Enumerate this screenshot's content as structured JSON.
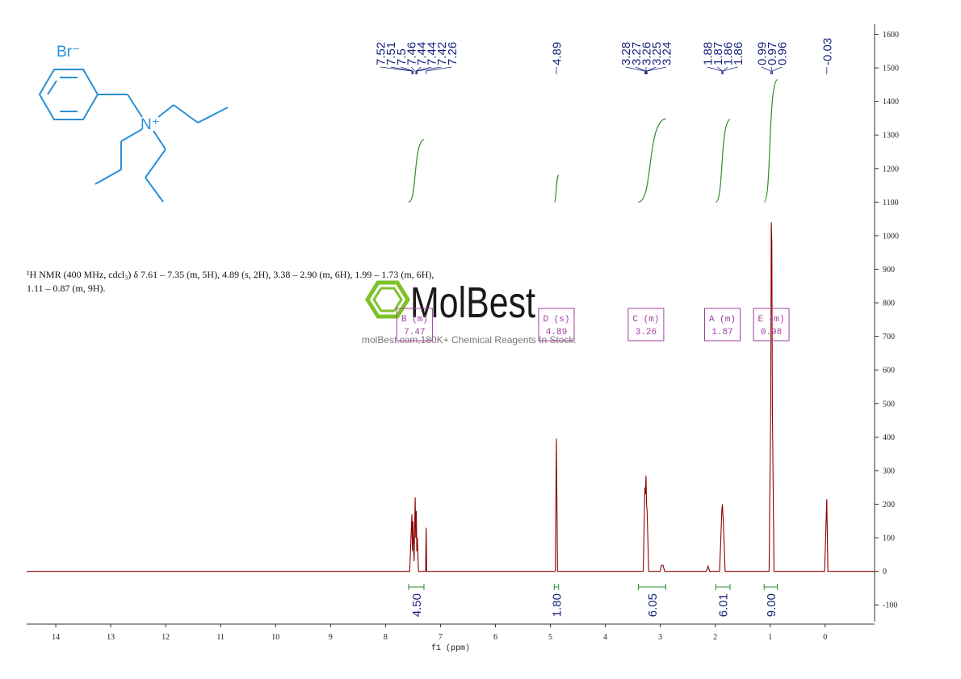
{
  "chart_data": {
    "type": "line",
    "xlabel": "f1 (ppm)",
    "xlim": [
      14.53,
      -0.9
    ],
    "xticks": [
      0,
      1,
      2,
      3,
      4,
      5,
      6,
      7,
      8,
      9,
      10,
      11,
      12,
      13,
      14
    ],
    "ylim": [
      -150,
      1630
    ],
    "yticks": [
      -100,
      0,
      100,
      200,
      300,
      400,
      500,
      600,
      700,
      800,
      900,
      1000,
      1100,
      1200,
      1300,
      1400,
      1500,
      1600
    ],
    "series": [
      {
        "color": "#8b0000",
        "x": [
          14.53,
          7.56,
          7.52,
          7.51,
          7.5,
          7.48,
          7.46,
          7.45,
          7.44,
          7.43,
          7.42,
          7.4,
          7.27,
          7.26,
          7.25,
          4.91,
          4.89,
          4.87,
          3.31,
          3.28,
          3.27,
          3.26,
          3.25,
          3.24,
          3.21,
          3.0,
          2.98,
          2.95,
          2.92,
          2.16,
          2.13,
          2.1,
          1.92,
          1.88,
          1.87,
          1.86,
          1.85,
          1.82,
          1.02,
          0.99,
          0.98,
          0.97,
          0.96,
          0.93,
          0.01,
          -0.03,
          -0.05,
          -0.9
        ],
        "values": [
          0,
          0,
          170,
          60,
          150,
          30,
          220,
          100,
          180,
          60,
          100,
          0,
          0,
          130,
          0,
          0,
          395,
          0,
          0,
          250,
          230,
          285,
          200,
          180,
          0,
          0,
          18,
          18,
          0,
          0,
          15,
          0,
          0,
          180,
          200,
          170,
          140,
          0,
          0,
          490,
          1040,
          980,
          480,
          0,
          0,
          215,
          0,
          0
        ]
      }
    ],
    "peak_labels": [
      7.52,
      7.51,
      7.5,
      7.46,
      7.44,
      7.44,
      7.42,
      7.26,
      4.89,
      3.28,
      3.27,
      3.26,
      3.25,
      3.24,
      1.88,
      1.87,
      1.86,
      1.86,
      0.99,
      0.97,
      0.96,
      -0.03
    ],
    "integrals": {
      "ranges": [
        [
          7.58,
          7.3
        ],
        [
          4.93,
          4.85
        ],
        [
          3.4,
          2.9
        ],
        [
          1.99,
          1.73
        ],
        [
          1.11,
          0.87
        ]
      ],
      "values": [
        4.5,
        1.8,
        6.05,
        6.01,
        9
      ],
      "value_labels": [
        "4.50",
        "1.80",
        "6.05",
        "6.01",
        "9.00"
      ]
    },
    "multiplets": [
      {
        "label": "B (m)",
        "shift": 7.47
      },
      {
        "label": "D (s)",
        "shift": 4.89
      },
      {
        "label": "C (m)",
        "shift": 3.26
      },
      {
        "label": "A (m)",
        "shift": 1.87
      },
      {
        "label": "E (m)",
        "shift": 0.98
      }
    ],
    "description": [
      "¹H NMR (400 MHz, cdcl₃) δ 7.61 – 7.35 (m, 5H), 4.89 (s, 2H), 3.38 – 2.90 (m, 6H), 1.99 – 1.73 (m, 6H),",
      "1.11 – 0.87 (m, 9H)."
    ],
    "structure": {
      "anion": "Br⁻",
      "cation": "N⁺"
    },
    "watermark": {
      "brand": "MolBest",
      "tagline": "molBest.com,180K+ Chemical Reagents In Stock."
    }
  }
}
